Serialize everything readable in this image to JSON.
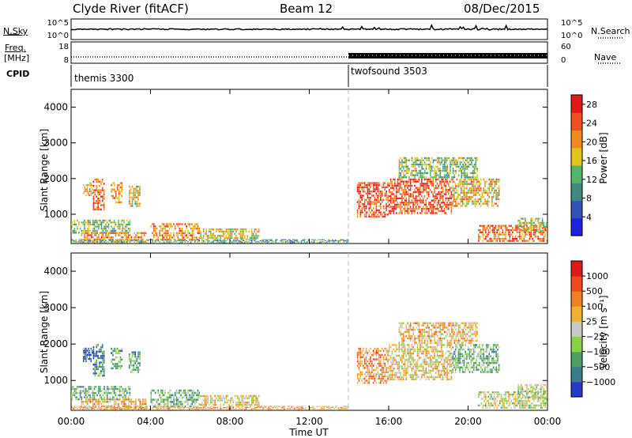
{
  "header": {
    "title": "Clyde River (fitACF)",
    "beam": "Beam 12",
    "date": "08/Dec/2015"
  },
  "top_panels": {
    "nsky_label": "N.Sky",
    "nsky_ticks": [
      "10^5",
      "10^0"
    ],
    "nsearch_label": "N.Search",
    "nsearch_ticks": [
      "10^5",
      "10^0"
    ],
    "freq_label": "Freq.",
    "freq_unit": "[MHz]",
    "freq_ticks": [
      "18",
      "8"
    ],
    "nave_label": "Nave",
    "nave_ticks": [
      "60",
      "0"
    ],
    "cpid_label": "CPID",
    "cpid_segments": [
      {
        "name": "themis 3300",
        "start_hour": 0,
        "end_hour": 14
      },
      {
        "name": "twofsound 3503",
        "start_hour": 14,
        "end_hour": 24
      }
    ]
  },
  "chart_data": [
    {
      "type": "heatmap",
      "title": "Power",
      "xlabel": "Time UT",
      "ylabel": "Slant Range [km]",
      "x_ticks": [
        "00:00",
        "04:00",
        "08:00",
        "12:00",
        "16:00",
        "20:00",
        "00:00"
      ],
      "x_range_hours": [
        0,
        24
      ],
      "y_ticks": [
        "1000",
        "2000",
        "3000",
        "4000"
      ],
      "ylim": [
        180,
        4500
      ],
      "colorbar": {
        "label": "Power [dB]",
        "ticks": [
          "4",
          "8",
          "12",
          "16",
          "20",
          "24",
          "28"
        ],
        "range": [
          0,
          30
        ],
        "colors": [
          "#1e22e0",
          "#3552b8",
          "#3f8a7e",
          "#52b66a",
          "#e0c41a",
          "#f08a1c",
          "#f05020",
          "#e01818"
        ]
      },
      "scatter_regions": [
        {
          "t0": 0.6,
          "t1": 1.1,
          "r0": 1500,
          "r1": 1900,
          "level": 0.55
        },
        {
          "t0": 1.1,
          "t1": 1.7,
          "r0": 1100,
          "r1": 2000,
          "level": 0.78
        },
        {
          "t0": 2.0,
          "t1": 2.6,
          "r0": 1300,
          "r1": 1900,
          "level": 0.7
        },
        {
          "t0": 2.9,
          "t1": 3.5,
          "r0": 1200,
          "r1": 1800,
          "level": 0.55
        },
        {
          "t0": 0.0,
          "t1": 3.0,
          "r0": 450,
          "r1": 850,
          "level": 0.45
        },
        {
          "t0": 0.5,
          "t1": 3.8,
          "r0": 200,
          "r1": 500,
          "level": 0.7
        },
        {
          "t0": 4.0,
          "t1": 6.5,
          "r0": 250,
          "r1": 750,
          "level": 0.7
        },
        {
          "t0": 6.5,
          "t1": 9.5,
          "r0": 300,
          "r1": 600,
          "level": 0.55
        },
        {
          "t0": 0.0,
          "t1": 14.0,
          "r0": 180,
          "r1": 300,
          "level": 0.35
        },
        {
          "t0": 14.4,
          "t1": 16.0,
          "r0": 900,
          "r1": 1900,
          "level": 0.82
        },
        {
          "t0": 16.0,
          "t1": 19.2,
          "r0": 1000,
          "r1": 2000,
          "level": 0.82
        },
        {
          "t0": 19.2,
          "t1": 21.6,
          "r0": 1200,
          "r1": 2000,
          "level": 0.62
        },
        {
          "t0": 16.5,
          "t1": 20.5,
          "r0": 2000,
          "r1": 2600,
          "level": 0.45
        },
        {
          "t0": 20.5,
          "t1": 24.0,
          "r0": 220,
          "r1": 700,
          "level": 0.78
        },
        {
          "t0": 22.5,
          "t1": 24.0,
          "r0": 500,
          "r1": 900,
          "level": 0.5
        }
      ]
    },
    {
      "type": "heatmap",
      "title": "Velocity",
      "xlabel": "Time UT",
      "ylabel": "Slant Range [km]",
      "x_ticks": [
        "00:00",
        "04:00",
        "08:00",
        "12:00",
        "16:00",
        "20:00",
        "00:00"
      ],
      "x_range_hours": [
        0,
        24
      ],
      "y_ticks": [
        "1000",
        "2000",
        "3000",
        "4000"
      ],
      "ylim": [
        180,
        4500
      ],
      "colorbar": {
        "label": "Velocity [m s⁻¹]",
        "ticks": [
          "1000",
          "500",
          "100",
          "25",
          "−25",
          "−100",
          "−500",
          "−1000"
        ],
        "colors": [
          "#2838c8",
          "#3c7a8e",
          "#4ea060",
          "#8ad048",
          "#c8c8c8",
          "#f0b030",
          "#f08020",
          "#f04a1c",
          "#e01818"
        ]
      },
      "scatter_regions": [
        {
          "t0": 0.6,
          "t1": 1.1,
          "r0": 1500,
          "r1": 1900,
          "level": 0.1
        },
        {
          "t0": 1.1,
          "t1": 1.7,
          "r0": 1100,
          "r1": 2000,
          "level": 0.18
        },
        {
          "t0": 2.0,
          "t1": 2.6,
          "r0": 1300,
          "r1": 1900,
          "level": 0.3
        },
        {
          "t0": 2.9,
          "t1": 3.5,
          "r0": 1200,
          "r1": 1800,
          "level": 0.3
        },
        {
          "t0": 0.0,
          "t1": 3.0,
          "r0": 450,
          "r1": 850,
          "level": 0.35
        },
        {
          "t0": 0.5,
          "t1": 3.8,
          "r0": 200,
          "r1": 500,
          "level": 0.6
        },
        {
          "t0": 4.0,
          "t1": 6.5,
          "r0": 250,
          "r1": 750,
          "level": 0.35
        },
        {
          "t0": 6.5,
          "t1": 9.5,
          "r0": 300,
          "r1": 600,
          "level": 0.55
        },
        {
          "t0": 0.0,
          "t1": 14.0,
          "r0": 180,
          "r1": 300,
          "level": 0.62
        },
        {
          "t0": 14.4,
          "t1": 16.0,
          "r0": 900,
          "r1": 1900,
          "level": 0.7
        },
        {
          "t0": 16.0,
          "t1": 19.2,
          "r0": 1000,
          "r1": 2000,
          "level": 0.55
        },
        {
          "t0": 19.2,
          "t1": 21.6,
          "r0": 1200,
          "r1": 2000,
          "level": 0.35
        },
        {
          "t0": 16.5,
          "t1": 20.5,
          "r0": 2000,
          "r1": 2600,
          "level": 0.6
        },
        {
          "t0": 20.5,
          "t1": 24.0,
          "r0": 220,
          "r1": 700,
          "level": 0.48
        },
        {
          "t0": 22.5,
          "t1": 24.0,
          "r0": 500,
          "r1": 900,
          "level": 0.45
        }
      ]
    }
  ]
}
